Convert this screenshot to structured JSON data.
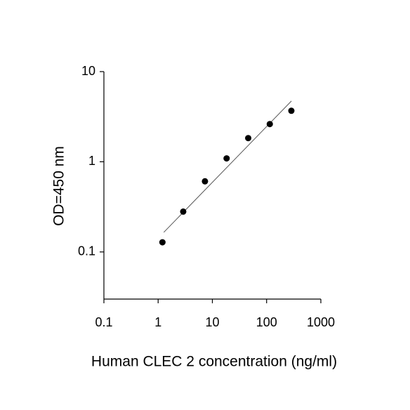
{
  "chart_data": {
    "type": "scatter",
    "x_label": "Human CLEC 2 concentration (ng/ml)",
    "y_label": "OD=450 nm",
    "x_log": true,
    "y_log": true,
    "xlim": [
      0.1,
      1000
    ],
    "ylim": [
      0.03,
      10
    ],
    "xticks": [
      0.1,
      1,
      10,
      100,
      1000
    ],
    "yticks": [
      0.1,
      1,
      10
    ],
    "points": {
      "x": [
        1.2,
        2.9,
        7.3,
        18.3,
        45.8,
        114.5,
        286
      ],
      "y": [
        0.128,
        0.28,
        0.607,
        1.09,
        1.83,
        2.62,
        3.68
      ],
      "color": "#000000"
    },
    "fit": {
      "x": [
        1.27,
        287
      ],
      "y": [
        0.165,
        4.72
      ],
      "color": "#555555"
    }
  }
}
